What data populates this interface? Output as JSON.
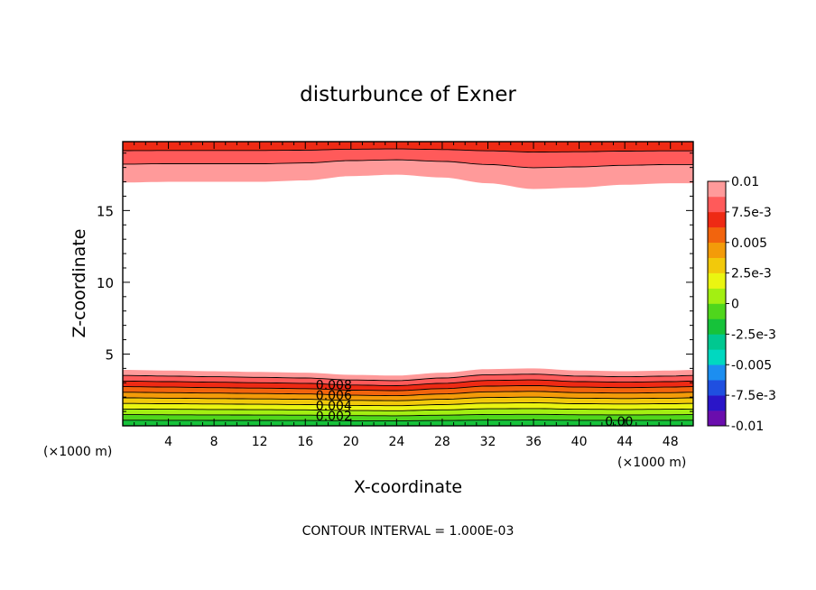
{
  "chart_data": {
    "type": "contour",
    "title": "disturbunce of Exner",
    "xlabel": "X-coordinate",
    "ylabel": "Z-coordinate",
    "x_unit_left": "(×1000 m)",
    "x_unit_right": "(×1000 m)",
    "footer": "CONTOUR INTERVAL = 1.000E-03",
    "xlim": [
      0,
      50
    ],
    "ylim": [
      0,
      19.8
    ],
    "x_ticks": [
      4,
      8,
      12,
      16,
      20,
      24,
      28,
      32,
      36,
      40,
      44,
      48
    ],
    "x_tick_labels": [
      "4",
      "8",
      "12",
      "16",
      "20",
      "24",
      "28",
      "32",
      "36",
      "40",
      "44",
      "48"
    ],
    "y_ticks": [
      5,
      10,
      15
    ],
    "y_tick_labels": [
      "5",
      "10",
      "15"
    ],
    "contour_interval": 0.001,
    "contour_labels": [
      {
        "text": "0.008",
        "x": 18.5,
        "z": 2.85
      },
      {
        "text": "0.006",
        "x": 18.5,
        "z": 2.15
      },
      {
        "text": "0.004",
        "x": 18.5,
        "z": 1.4
      },
      {
        "text": "0.002",
        "x": 18.5,
        "z": 0.7
      },
      {
        "text": "0.00",
        "x": 43.5,
        "z": 0.3
      }
    ],
    "lower_boundary_profile": {
      "x": [
        0,
        4,
        8,
        12,
        16,
        20,
        24,
        28,
        32,
        36,
        40,
        44,
        48,
        50
      ],
      "z": [
        3.9,
        3.85,
        3.8,
        3.75,
        3.7,
        3.55,
        3.5,
        3.7,
        3.95,
        4.0,
        3.85,
        3.8,
        3.85,
        3.9
      ]
    },
    "upper_boundary_profile": {
      "x": [
        0,
        4,
        8,
        12,
        16,
        20,
        24,
        28,
        32,
        36,
        40,
        44,
        48,
        50
      ],
      "z": [
        16.95,
        17.0,
        17.0,
        17.0,
        17.1,
        17.4,
        17.5,
        17.3,
        16.9,
        16.5,
        16.6,
        16.8,
        16.9,
        16.9
      ]
    },
    "colorbar": {
      "labels": [
        "0.01",
        "7.5e-3",
        "0.005",
        "2.5e-3",
        "0",
        "-2.5e-3",
        "-0.005",
        "-7.5e-3",
        "-0.01"
      ],
      "colors": [
        "#6a0dad",
        "#2a15c8",
        "#1f4fe0",
        "#1c8ef0",
        "#00d8c0",
        "#00c890",
        "#16c23a",
        "#4fd61c",
        "#a3ef12",
        "#eaf511",
        "#f2c90b",
        "#f39b09",
        "#f2640d",
        "#ee2a14",
        "#ff5a5a",
        "#ff9a9a"
      ]
    }
  }
}
